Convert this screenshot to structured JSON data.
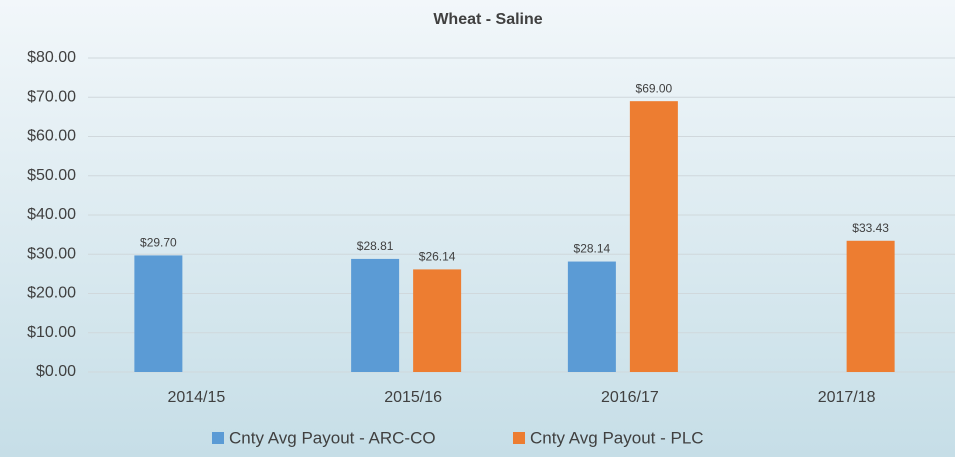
{
  "chart_data": {
    "type": "bar",
    "title": "Wheat - Saline",
    "categories": [
      "2014/15",
      "2015/16",
      "2016/17",
      "2017/18"
    ],
    "series": [
      {
        "name": "Cnty Avg Payout - ARC-CO",
        "color": "#5b9bd5",
        "values": [
          29.7,
          28.81,
          28.14,
          null
        ],
        "value_labels": [
          "$29.70",
          "$28.81",
          "$28.14",
          null
        ]
      },
      {
        "name": "Cnty Avg Payout - PLC",
        "color": "#ed7d31",
        "values": [
          null,
          26.14,
          69.0,
          33.43
        ],
        "value_labels": [
          null,
          "$26.14",
          "$69.00",
          "$33.43"
        ]
      }
    ],
    "ylim": [
      0,
      80
    ],
    "yticks": [
      {
        "value": 0,
        "label": "$0.00"
      },
      {
        "value": 10,
        "label": "$10.00"
      },
      {
        "value": 20,
        "label": "$20.00"
      },
      {
        "value": 30,
        "label": "$30.00"
      },
      {
        "value": 40,
        "label": "$40.00"
      },
      {
        "value": 50,
        "label": "$50.00"
      },
      {
        "value": 60,
        "label": "$60.00"
      },
      {
        "value": 70,
        "label": "$70.00"
      },
      {
        "value": 80,
        "label": "$80.00"
      }
    ],
    "grid": true,
    "legend": "bottom"
  }
}
